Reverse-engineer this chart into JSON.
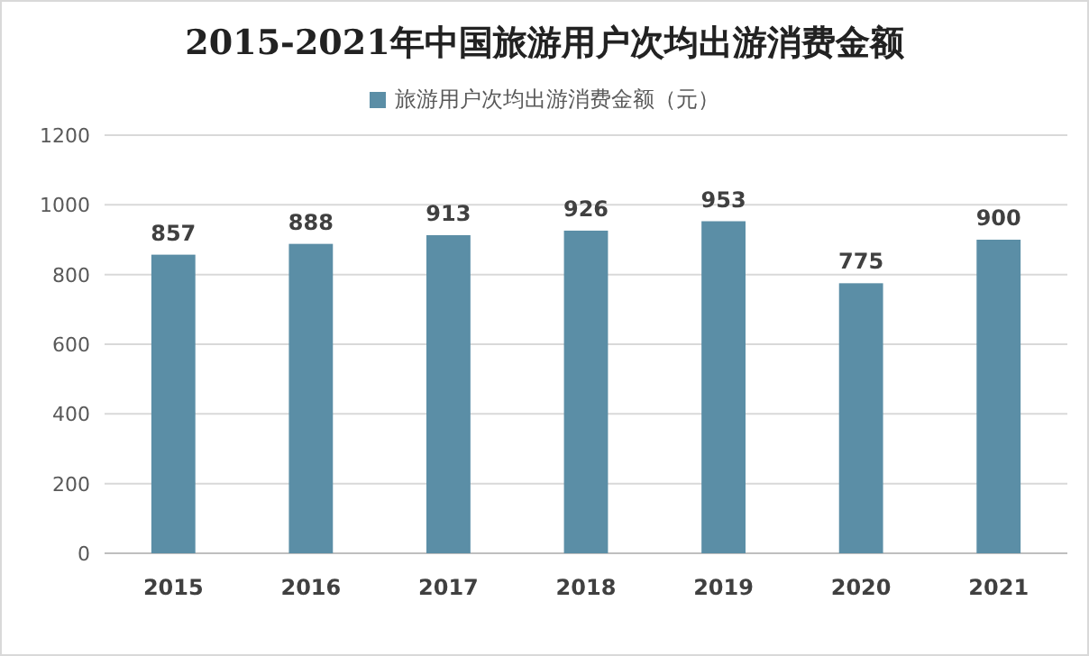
{
  "chart_data": {
    "type": "bar",
    "title": "2015-2021年中国旅游用户次均出游消费金额",
    "categories": [
      "2015",
      "2016",
      "2017",
      "2018",
      "2019",
      "2020",
      "2021"
    ],
    "series": [
      {
        "name": "旅游用户次均出游消费金额（元）",
        "color": "#5b8ea6",
        "values": [
          857,
          888,
          913,
          926,
          953,
          775,
          900
        ]
      }
    ],
    "ylim": [
      0,
      1200
    ],
    "yticks": [
      0,
      200,
      400,
      600,
      800,
      1000,
      1200
    ],
    "grid": "y",
    "legend": "top",
    "data_labels": true
  }
}
